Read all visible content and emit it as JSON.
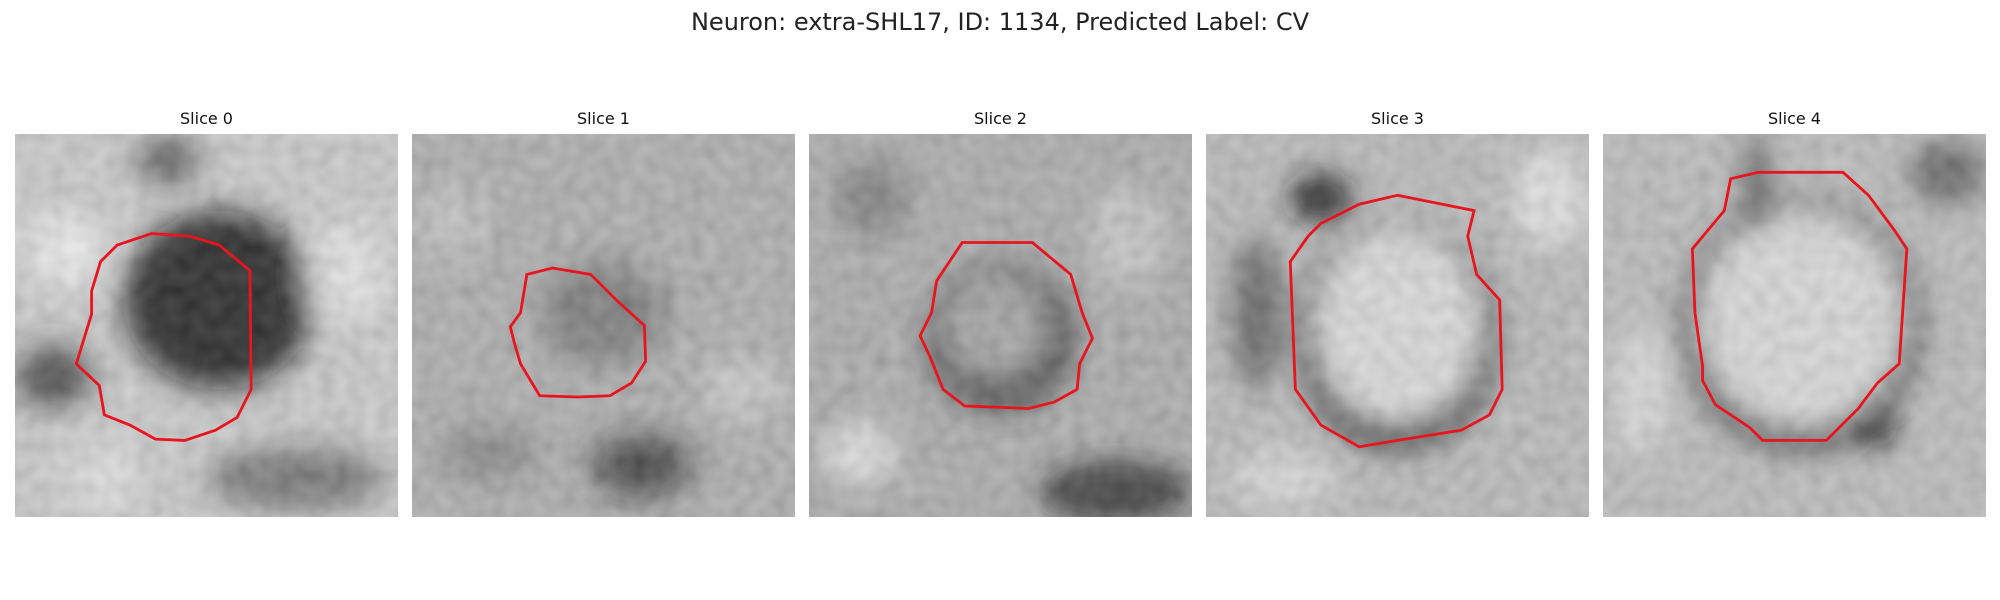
{
  "figure": {
    "title": "Neuron: extra-SHL17, ID: 1134, Predicted Label: CV",
    "contour_color": "#e8141e",
    "panels": [
      {
        "title": "Slice 0"
      },
      {
        "title": "Slice 1"
      },
      {
        "title": "Slice 2"
      },
      {
        "title": "Slice 3"
      },
      {
        "title": "Slice 4"
      }
    ]
  }
}
